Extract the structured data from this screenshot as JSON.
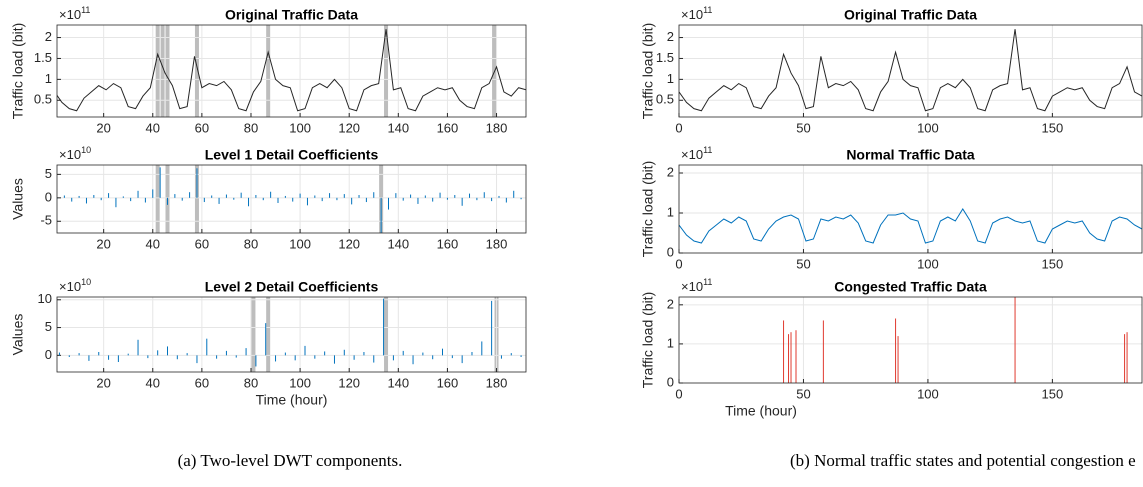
{
  "captions": {
    "a": "(a)  Two-level DWT components.",
    "b": "(b)  Normal traffic states and potential congestion e"
  },
  "chart_data": [
    {
      "type": "line",
      "title": "Original Traffic Data",
      "ylabel": "Traffic load (bit)",
      "y_scale_base": "×10",
      "y_scale_power": 11,
      "x": [
        0,
        3,
        6,
        9,
        12,
        15,
        18,
        21,
        24,
        27,
        30,
        33,
        36,
        39,
        42,
        45,
        48,
        51,
        54,
        57,
        60,
        63,
        66,
        69,
        72,
        75,
        78,
        81,
        84,
        87,
        90,
        93,
        96,
        99,
        102,
        105,
        108,
        111,
        114,
        117,
        120,
        123,
        126,
        129,
        132,
        135,
        138,
        141,
        144,
        147,
        150,
        153,
        156,
        159,
        162,
        165,
        168,
        171,
        174,
        177,
        180,
        183,
        186,
        189,
        192
      ],
      "values": [
        0.7,
        0.45,
        0.3,
        0.25,
        0.55,
        0.7,
        0.85,
        0.75,
        0.9,
        0.8,
        0.35,
        0.3,
        0.6,
        0.8,
        1.6,
        1.15,
        0.85,
        0.3,
        0.35,
        1.55,
        0.8,
        0.9,
        0.85,
        0.95,
        0.75,
        0.3,
        0.25,
        0.7,
        0.95,
        1.65,
        1.0,
        0.85,
        0.8,
        0.25,
        0.3,
        0.8,
        0.9,
        0.8,
        1.0,
        0.8,
        0.3,
        0.25,
        0.75,
        0.85,
        0.9,
        2.2,
        0.75,
        0.8,
        0.3,
        0.25,
        0.6,
        0.7,
        0.8,
        0.75,
        0.8,
        0.5,
        0.35,
        0.3,
        0.8,
        0.9,
        1.3,
        0.7,
        0.6,
        0.8,
        0.75
      ],
      "color": "#262626",
      "xlim": [
        1,
        192
      ],
      "xticks": [
        20,
        40,
        60,
        80,
        100,
        120,
        140,
        160,
        180
      ],
      "ylim": [
        0.1,
        2.3
      ],
      "yticks": [
        0.5,
        1,
        1.5,
        2
      ],
      "grid": true,
      "highlights": [
        42,
        44,
        46,
        58,
        87,
        135,
        179
      ],
      "highlight_color": "#bdbdbd"
    },
    {
      "type": "stem",
      "title": "Level 1 Detail Coefficients",
      "ylabel": "Values",
      "y_scale_base": "×10",
      "y_scale_power": 10,
      "x": [
        1,
        4,
        7,
        10,
        13,
        16,
        19,
        22,
        25,
        28,
        31,
        34,
        37,
        40,
        43,
        46,
        49,
        52,
        55,
        58,
        61,
        64,
        67,
        70,
        73,
        76,
        79,
        82,
        85,
        88,
        91,
        94,
        97,
        100,
        103,
        106,
        109,
        112,
        115,
        118,
        121,
        124,
        127,
        130,
        133,
        136,
        139,
        142,
        145,
        148,
        151,
        154,
        157,
        160,
        163,
        166,
        169,
        172,
        175,
        178,
        181,
        184,
        187,
        190
      ],
      "values": [
        -0.3,
        0.5,
        -0.8,
        0.4,
        -1.2,
        0.6,
        -0.5,
        1.0,
        -2.0,
        0.3,
        -0.7,
        1.5,
        -1.0,
        1.8,
        6.5,
        -1.5,
        0.8,
        -0.6,
        1.2,
        6.3,
        -0.9,
        0.5,
        -1.3,
        0.7,
        -0.4,
        1.1,
        -1.8,
        0.6,
        -0.5,
        1.3,
        -1.1,
        0.4,
        -0.8,
        0.9,
        -1.6,
        0.5,
        -0.7,
        1.0,
        -0.5,
        0.8,
        -1.4,
        0.6,
        -0.9,
        1.2,
        -7.5,
        -2.5,
        1.0,
        -0.6,
        0.7,
        -1.3,
        0.5,
        -0.8,
        1.1,
        -0.4,
        0.6,
        -1.7,
        0.9,
        -0.5,
        1.2,
        -0.7,
        0.4,
        -1.0,
        1.5,
        -0.3
      ],
      "color": "#0072bd",
      "xlim": [
        1,
        192
      ],
      "xticks": [
        20,
        40,
        60,
        80,
        100,
        120,
        140,
        160,
        180
      ],
      "ylim": [
        -7.5,
        7
      ],
      "yticks": [
        -5,
        0,
        5
      ],
      "grid": true,
      "highlights": [
        42,
        46,
        58,
        133
      ],
      "highlight_color": "#bdbdbd"
    },
    {
      "type": "stem",
      "title": "Level 2 Detail Coefficients",
      "ylabel": "Values",
      "xlabel": "Time (hour)",
      "y_scale_base": "×10",
      "y_scale_power": 10,
      "x": [
        2,
        6,
        10,
        14,
        18,
        22,
        26,
        30,
        34,
        38,
        42,
        46,
        50,
        54,
        58,
        62,
        66,
        70,
        74,
        78,
        82,
        86,
        90,
        94,
        98,
        102,
        106,
        110,
        114,
        118,
        122,
        126,
        130,
        134,
        138,
        142,
        146,
        150,
        154,
        158,
        162,
        166,
        170,
        174,
        178,
        182,
        186,
        190
      ],
      "values": [
        0.5,
        -0.3,
        0.4,
        -1.0,
        0.6,
        -0.8,
        -1.2,
        0.3,
        2.8,
        -0.5,
        0.9,
        1.6,
        -0.7,
        0.4,
        -1.4,
        3.0,
        -0.6,
        0.8,
        -0.4,
        1.3,
        -2.0,
        5.8,
        -1.1,
        0.5,
        -0.9,
        1.7,
        -0.6,
        0.7,
        -1.5,
        1.0,
        -0.8,
        0.6,
        -1.3,
        10.2,
        -0.9,
        0.8,
        -1.6,
        0.5,
        -0.7,
        1.2,
        -0.5,
        -1.4,
        0.6,
        2.5,
        9.8,
        -0.6,
        0.4,
        -0.3
      ],
      "color": "#0072bd",
      "xlim": [
        1,
        192
      ],
      "xticks": [
        20,
        40,
        60,
        80,
        100,
        120,
        140,
        160,
        180
      ],
      "ylim": [
        -3,
        10.5
      ],
      "yticks": [
        0,
        5,
        10
      ],
      "grid": true,
      "highlights": [
        81,
        87,
        135,
        180
      ],
      "highlight_color": "#bdbdbd"
    },
    {
      "type": "line",
      "title": "Original Traffic Data",
      "ylabel": "Traffic load (bit)",
      "y_scale_base": "×10",
      "y_scale_power": 11,
      "x": [
        0,
        3,
        6,
        9,
        12,
        15,
        18,
        21,
        24,
        27,
        30,
        33,
        36,
        39,
        42,
        45,
        48,
        51,
        54,
        57,
        60,
        63,
        66,
        69,
        72,
        75,
        78,
        81,
        84,
        87,
        90,
        93,
        96,
        99,
        102,
        105,
        108,
        111,
        114,
        117,
        120,
        123,
        126,
        129,
        132,
        135,
        138,
        141,
        144,
        147,
        150,
        153,
        156,
        159,
        162,
        165,
        168,
        171,
        174,
        177,
        180,
        183,
        186
      ],
      "values": [
        0.7,
        0.45,
        0.3,
        0.25,
        0.55,
        0.7,
        0.85,
        0.75,
        0.9,
        0.8,
        0.35,
        0.3,
        0.6,
        0.8,
        1.6,
        1.15,
        0.85,
        0.3,
        0.35,
        1.55,
        0.8,
        0.9,
        0.85,
        0.95,
        0.75,
        0.3,
        0.25,
        0.7,
        0.95,
        1.65,
        1.0,
        0.85,
        0.8,
        0.25,
        0.3,
        0.8,
        0.9,
        0.8,
        1.0,
        0.8,
        0.3,
        0.25,
        0.75,
        0.85,
        0.9,
        2.2,
        0.75,
        0.8,
        0.3,
        0.25,
        0.6,
        0.7,
        0.8,
        0.75,
        0.8,
        0.5,
        0.35,
        0.3,
        0.8,
        0.9,
        1.3,
        0.7,
        0.6
      ],
      "color": "#262626",
      "xlim": [
        0,
        186
      ],
      "xticks": [
        0,
        50,
        100,
        150
      ],
      "ylim": [
        0.1,
        2.3
      ],
      "yticks": [
        0.5,
        1,
        1.5,
        2
      ],
      "grid": true
    },
    {
      "type": "line",
      "title": "Normal Traffic Data",
      "ylabel": "Traffic load (bit)",
      "y_scale_base": "×10",
      "y_scale_power": 11,
      "x": [
        0,
        3,
        6,
        9,
        12,
        15,
        18,
        21,
        24,
        27,
        30,
        33,
        36,
        39,
        42,
        45,
        48,
        51,
        54,
        57,
        60,
        63,
        66,
        69,
        72,
        75,
        78,
        81,
        84,
        87,
        90,
        93,
        96,
        99,
        102,
        105,
        108,
        111,
        114,
        117,
        120,
        123,
        126,
        129,
        132,
        135,
        138,
        141,
        144,
        147,
        150,
        153,
        156,
        159,
        162,
        165,
        168,
        171,
        174,
        177,
        180,
        183,
        186
      ],
      "values": [
        0.7,
        0.45,
        0.3,
        0.25,
        0.55,
        0.7,
        0.85,
        0.75,
        0.9,
        0.8,
        0.35,
        0.3,
        0.6,
        0.8,
        0.9,
        0.95,
        0.85,
        0.3,
        0.35,
        0.85,
        0.8,
        0.9,
        0.85,
        0.95,
        0.75,
        0.3,
        0.25,
        0.7,
        0.95,
        0.95,
        1.0,
        0.85,
        0.8,
        0.25,
        0.3,
        0.8,
        0.9,
        0.8,
        1.1,
        0.8,
        0.3,
        0.25,
        0.75,
        0.85,
        0.9,
        0.8,
        0.75,
        0.8,
        0.3,
        0.25,
        0.6,
        0.7,
        0.8,
        0.75,
        0.8,
        0.5,
        0.35,
        0.3,
        0.8,
        0.9,
        0.85,
        0.7,
        0.6
      ],
      "color": "#0072bd",
      "xlim": [
        0,
        186
      ],
      "xticks": [
        0,
        50,
        100,
        150
      ],
      "ylim": [
        0,
        2.2
      ],
      "yticks": [
        0,
        1,
        2
      ],
      "grid": true
    },
    {
      "type": "stem",
      "title": "Congested Traffic Data",
      "ylabel": "Traffic load (bit)",
      "xlabel": "Time (hour)",
      "y_scale_base": "×10",
      "y_scale_power": 11,
      "x": [
        42,
        44,
        45,
        47,
        58,
        87,
        88,
        135,
        179,
        180
      ],
      "values": [
        1.6,
        1.25,
        1.3,
        1.35,
        1.6,
        1.65,
        1.2,
        2.2,
        1.25,
        1.3
      ],
      "color": "#e03a2f",
      "xlim": [
        0,
        186
      ],
      "xticks": [
        0,
        50,
        100,
        150
      ],
      "ylim": [
        0,
        2.2
      ],
      "yticks": [
        0,
        1,
        2
      ],
      "grid": true
    }
  ]
}
